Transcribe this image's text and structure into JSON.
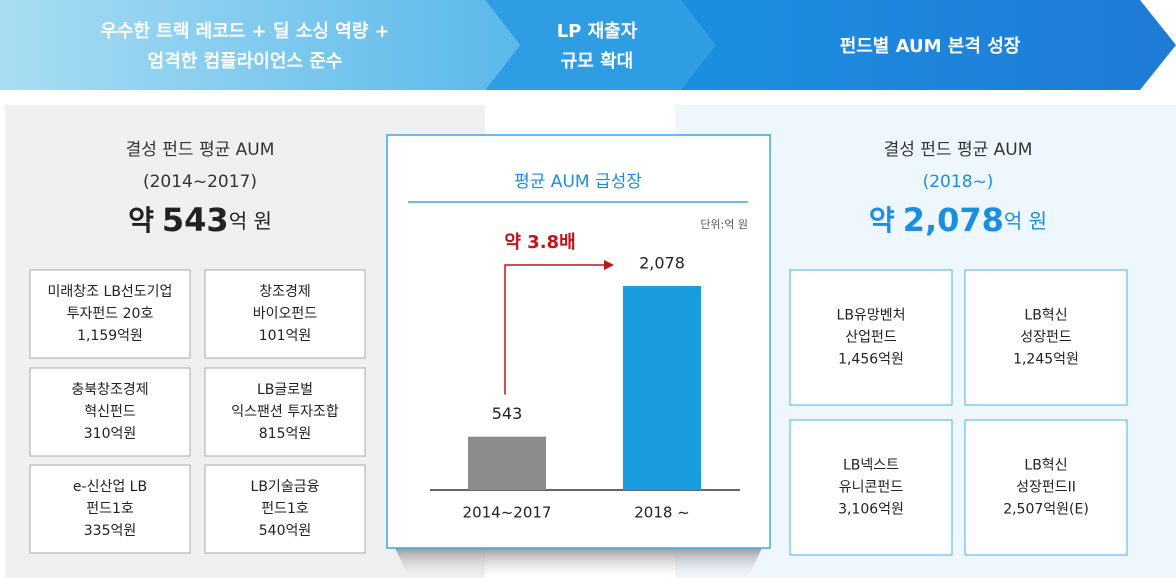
{
  "header": {
    "steps": [
      {
        "lines": [
          "우수한 트랙 레코드 + 딜 소싱 역량 +",
          "엄격한 컴플라이언스 준수"
        ]
      },
      {
        "lines": [
          "LP 재출자",
          "규모 확대"
        ]
      },
      {
        "lines": [
          "펀드별 AUM 본격 성장"
        ]
      }
    ]
  },
  "left": {
    "title": "결성 펀드 평균 AUM",
    "period": "(2014~2017)",
    "amount": {
      "prefix": "약",
      "value": "543",
      "unit": "억 원"
    },
    "funds": [
      [
        "미래창조 LB선도기업",
        "투자펀드 20호",
        "1,159억원"
      ],
      [
        "창조경제",
        "바이오펀드",
        "101억원"
      ],
      [
        "충북창조경제",
        "혁신펀드",
        "310억원"
      ],
      [
        "LB글로벌",
        "익스팬션 투자조합",
        "815억원"
      ],
      [
        "e-신산업 LB",
        "펀드1호",
        "335억원"
      ],
      [
        "LB기술금융",
        "펀드1호",
        "540억원"
      ]
    ]
  },
  "chart_data": {
    "type": "bar",
    "title": "평균 AUM 급성장",
    "unit_note": "단위:억 원",
    "annotation": "약 3.8배",
    "categories": [
      "2014~2017",
      "2018 ~"
    ],
    "values": [
      543,
      2078
    ],
    "value_labels": [
      "543",
      "2,078"
    ],
    "colors": [
      "#8c8c8c",
      "#1a9de0"
    ],
    "ylim": [
      0,
      2200
    ]
  },
  "right": {
    "title": "결성 펀드 평균 AUM",
    "period": "(2018~)",
    "amount": {
      "prefix": "약",
      "value": "2,078",
      "unit": "억 원"
    },
    "funds": [
      [
        "LB유망벤처",
        "산업펀드",
        "1,456억원"
      ],
      [
        "LB혁신",
        "성장펀드",
        "1,245억원"
      ],
      [
        "LB넥스트",
        "유니콘펀드",
        "3,106억원"
      ],
      [
        "LB혁신",
        "성장펀드II",
        "2,507억원(E)"
      ]
    ]
  }
}
